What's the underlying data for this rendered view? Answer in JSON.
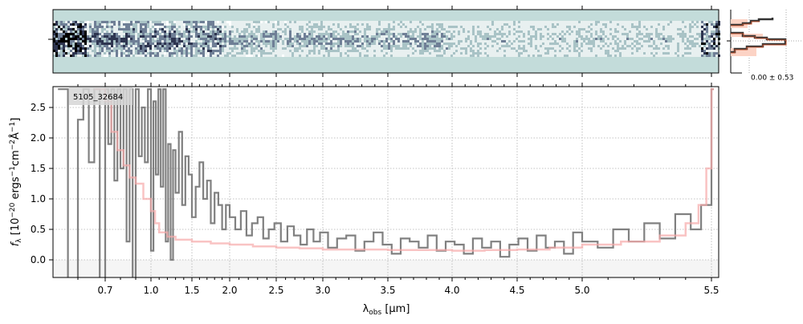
{
  "chart_data": [
    {
      "type": "heatmap",
      "panel": "2d-spectrum",
      "colormap": "grey-teal",
      "background_color": "#c3dcda"
    },
    {
      "type": "histogram",
      "panel": "residual-histogram",
      "annotation": "0.00 ± 0.53",
      "colors": {
        "data": "#333333",
        "outline": "#c0532f",
        "fill": "#fcd3c5"
      }
    },
    {
      "type": "line",
      "panel": "1d-spectrum",
      "label": "5105_32684",
      "xlabel": "λobs [μm]",
      "ylabel": "fλ [10⁻²⁰ ergs⁻¹cm⁻²Å⁻¹]",
      "xticks": [
        "0.7",
        "1.0",
        "1.5",
        "2.0",
        "2.5",
        "3.0",
        "3.5",
        "4.0",
        "4.5",
        "5.0",
        "5.5"
      ],
      "yticks": [
        "0.0",
        "0.5",
        "1.0",
        "1.5",
        "2.0",
        "2.5"
      ],
      "ylim": [
        -0.29,
        2.84
      ],
      "xlim": [
        0.55,
        5.52
      ],
      "grid": true,
      "series": [
        {
          "style": "step",
          "color": "#808080",
          "x": [
            0.56,
            0.58,
            0.6,
            0.62,
            0.64,
            0.66,
            0.68,
            0.7,
            0.72,
            0.74,
            0.76,
            0.78,
            0.8,
            0.82,
            0.84,
            0.86,
            0.88,
            0.9,
            0.92,
            0.94,
            0.96,
            0.98,
            1.0,
            1.03,
            1.06,
            1.09,
            1.12,
            1.15,
            1.18,
            1.21,
            1.24,
            1.27,
            1.3,
            1.34,
            1.38,
            1.42,
            1.46,
            1.5,
            1.55,
            1.6,
            1.65,
            1.7,
            1.75,
            1.8,
            1.85,
            1.9,
            1.95,
            2.0,
            2.06,
            2.12,
            2.18,
            2.24,
            2.3,
            2.36,
            2.42,
            2.48,
            2.55,
            2.62,
            2.69,
            2.76,
            2.83,
            2.9,
            2.97,
            3.04,
            3.11,
            3.18,
            3.25,
            3.32,
            3.39,
            3.46,
            3.53,
            3.6,
            3.67,
            3.74,
            3.81,
            3.88,
            3.95,
            4.02,
            4.09,
            4.16,
            4.23,
            4.3,
            4.37,
            4.44,
            4.51,
            4.58,
            4.65,
            4.72,
            4.79,
            4.86,
            4.93,
            5.0,
            5.06,
            5.12,
            5.18,
            5.24,
            5.3,
            5.36,
            5.42,
            5.46,
            5.5
          ],
          "y": [
            2.8,
            -0.3,
            2.3,
            2.8,
            1.6,
            2.8,
            -0.3,
            2.8,
            1.9,
            2.8,
            1.3,
            2.8,
            1.5,
            2.8,
            0.3,
            2.8,
            -0.3,
            2.8,
            1.7,
            2.5,
            1.6,
            2.8,
            0.15,
            2.6,
            1.4,
            2.8,
            1.2,
            2.8,
            0.3,
            1.9,
            0.0,
            1.8,
            1.1,
            2.1,
            0.9,
            1.7,
            1.4,
            0.7,
            1.2,
            1.6,
            1.0,
            1.3,
            0.6,
            1.1,
            0.9,
            0.5,
            0.9,
            0.7,
            0.5,
            0.8,
            0.4,
            0.6,
            0.7,
            0.35,
            0.5,
            0.6,
            0.3,
            0.55,
            0.4,
            0.25,
            0.5,
            0.3,
            0.45,
            0.2,
            0.35,
            0.4,
            0.15,
            0.3,
            0.45,
            0.25,
            0.1,
            0.35,
            0.3,
            0.2,
            0.4,
            0.15,
            0.3,
            0.25,
            0.1,
            0.35,
            0.2,
            0.3,
            0.05,
            0.25,
            0.35,
            0.15,
            0.4,
            0.2,
            0.3,
            0.1,
            0.45,
            0.3,
            0.2,
            0.5,
            0.3,
            0.6,
            0.35,
            0.75,
            0.5,
            0.9,
            2.8
          ]
        },
        {
          "style": "step",
          "color": "#f7a9a9",
          "x": [
            0.66,
            0.7,
            0.74,
            0.78,
            0.82,
            0.86,
            0.9,
            0.95,
            1.0,
            1.05,
            1.1,
            1.2,
            1.3,
            1.5,
            1.75,
            2.0,
            2.25,
            2.5,
            2.75,
            3.0,
            3.25,
            3.5,
            3.75,
            4.0,
            4.25,
            4.5,
            4.75,
            5.0,
            5.15,
            5.3,
            5.4,
            5.45,
            5.48,
            5.5
          ],
          "y": [
            2.8,
            2.6,
            2.1,
            1.8,
            1.55,
            1.35,
            1.25,
            1.0,
            0.8,
            0.6,
            0.45,
            0.38,
            0.33,
            0.3,
            0.27,
            0.25,
            0.22,
            0.2,
            0.19,
            0.17,
            0.17,
            0.16,
            0.16,
            0.15,
            0.16,
            0.17,
            0.2,
            0.25,
            0.3,
            0.4,
            0.6,
            0.9,
            1.5,
            2.8
          ]
        }
      ]
    }
  ]
}
